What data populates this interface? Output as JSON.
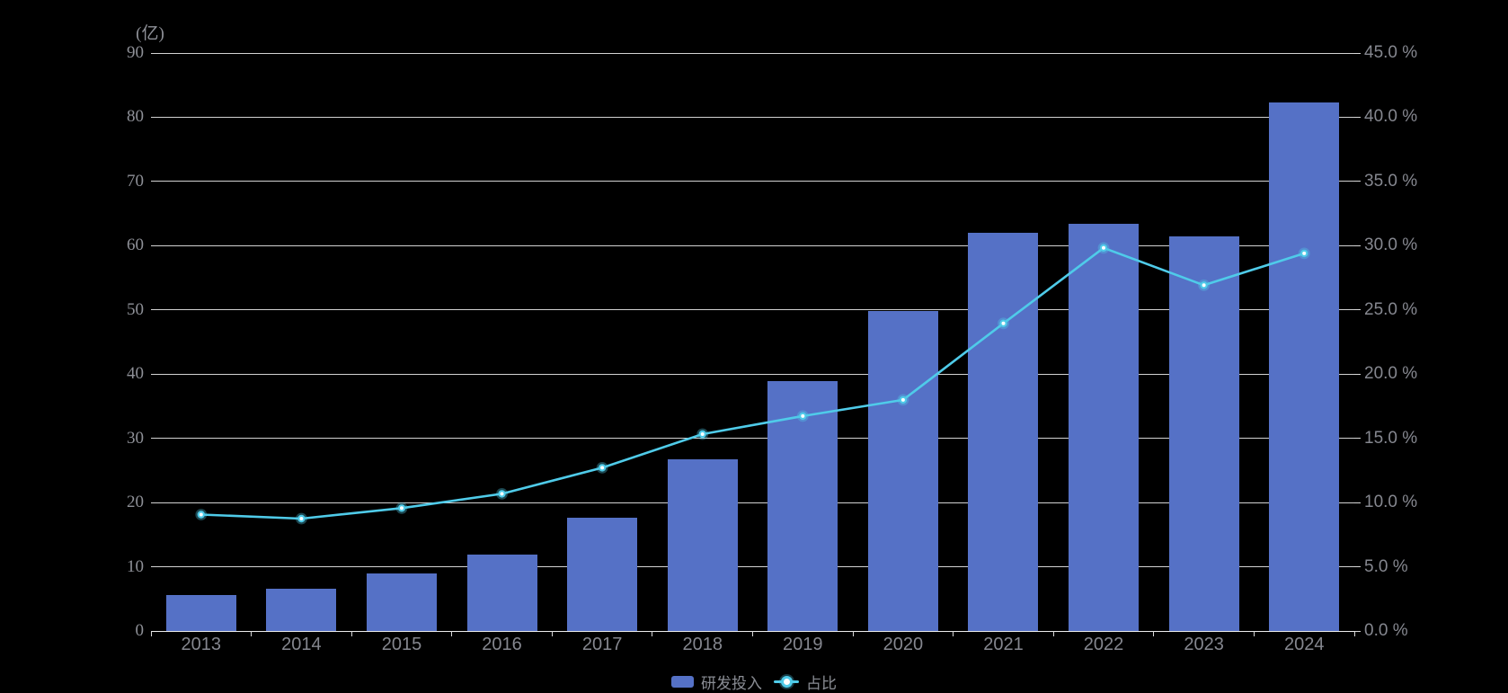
{
  "chart_data": {
    "type": "combo-bar-line",
    "unit_label": "(亿)",
    "background": "#000000",
    "grid": true,
    "legend_position": "bottom-center",
    "categories": [
      "2013",
      "2014",
      "2015",
      "2016",
      "2017",
      "2018",
      "2019",
      "2020",
      "2021",
      "2022",
      "2023",
      "2024"
    ],
    "series": [
      {
        "name": "研发投入",
        "type": "bar",
        "axis": "left",
        "unit": "亿",
        "color": "#5571c6",
        "values": [
          5.63,
          6.52,
          8.92,
          11.84,
          17.59,
          26.7,
          38.96,
          49.89,
          62.03,
          63.46,
          61.5,
          82.28
        ]
      },
      {
        "name": "占比",
        "type": "line",
        "axis": "right",
        "unit": "%",
        "color": "#4fcbe9",
        "values": [
          9.06,
          8.75,
          9.57,
          10.68,
          12.71,
          15.33,
          16.73,
          17.99,
          23.95,
          29.83,
          26.92,
          29.4
        ]
      }
    ],
    "left_axis": {
      "min": 0,
      "max": 90,
      "tick_labels": [
        "0",
        "10",
        "20",
        "30",
        "40",
        "50",
        "60",
        "70",
        "80",
        "90"
      ]
    },
    "right_axis": {
      "min": 0,
      "max": 45,
      "tick_labels": [
        "0.0 %",
        "5.0 %",
        "10.0 %",
        "15.0 %",
        "20.0 %",
        "25.0 %",
        "30.0 %",
        "35.0 %",
        "40.0 %",
        "45.0 %"
      ]
    },
    "legend": [
      "研发投入",
      "占比"
    ]
  },
  "colors": {
    "bar": "#5571c6",
    "line": "#4fcbe9",
    "gridline": "#d2d2d2",
    "axis_line": "#ececec",
    "label_gray": "#8e9097"
  }
}
